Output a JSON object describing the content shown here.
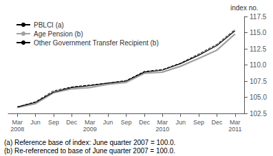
{
  "chart_data": {
    "type": "line",
    "y_label": "index no.",
    "categories": [
      "Mar\n2008",
      "Jun",
      "Sep",
      "Dec",
      "Mar\n2009",
      "Jun",
      "Sep",
      "Dec",
      "Mar\n2010",
      "Jun",
      "Sep",
      "Dec",
      "Mar\n2011"
    ],
    "series": [
      {
        "name": "PBLCI (a)",
        "color": "#000000",
        "line_style": "solid",
        "values": [
          103.5,
          104.2,
          105.8,
          106.5,
          106.8,
          107.2,
          107.5,
          108.9,
          109.2,
          110.2,
          111.5,
          113.0,
          115.3
        ]
      },
      {
        "name": "Age Pension (b)",
        "color": "#a0a0a0",
        "line_style": "solid",
        "values": [
          103.4,
          104.0,
          105.7,
          106.3,
          106.5,
          107.0,
          107.3,
          108.7,
          108.9,
          109.8,
          111.0,
          112.3,
          114.8
        ]
      },
      {
        "name": "Other Government Transfer Recipient (b)",
        "color": "#000000",
        "line_style": "dashed",
        "values": [
          103.5,
          104.3,
          106.0,
          106.6,
          106.9,
          107.2,
          107.6,
          109.0,
          109.3,
          110.3,
          111.7,
          113.2,
          115.5
        ]
      }
    ],
    "ylim": [
      102.5,
      117.5
    ],
    "yticks": [
      102.5,
      {
        "value": 105.0,
        "label": "105.0"
      },
      107.5,
      {
        "value": 110.0,
        "label": "110.0"
      },
      112.5,
      {
        "value": 115.0,
        "label": "115.0"
      },
      117.5
    ],
    "grid": false,
    "legend": "upper left",
    "annotations": [
      "(a) Reference base of index: June quarter 2007 = 100.0.",
      "(b) Re-referenced to base of June quarter 2007 = 100.0."
    ]
  }
}
